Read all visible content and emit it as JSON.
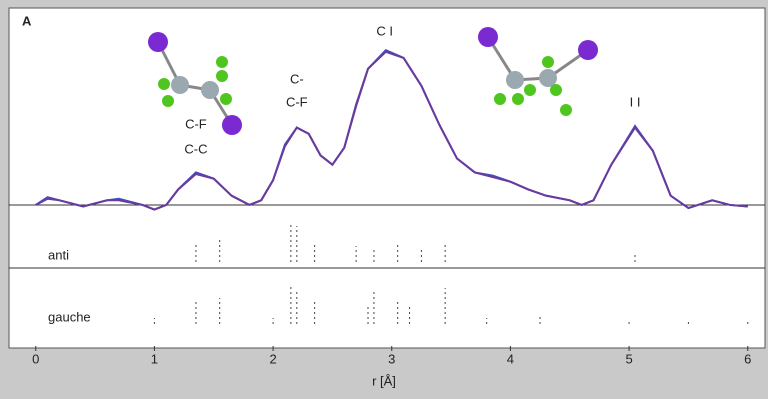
{
  "chart_data": {
    "type": "line",
    "panel_label": "A",
    "xlabel": "r [Å]",
    "x": [
      0.0,
      0.1,
      0.2,
      0.4,
      0.6,
      0.7,
      0.9,
      1.0,
      1.1,
      1.2,
      1.35,
      1.5,
      1.65,
      1.8,
      1.9,
      2.0,
      2.1,
      2.2,
      2.3,
      2.4,
      2.5,
      2.6,
      2.7,
      2.8,
      2.95,
      3.1,
      3.25,
      3.4,
      3.55,
      3.7,
      3.85,
      4.0,
      4.15,
      4.3,
      4.5,
      4.6,
      4.7,
      4.85,
      5.05,
      5.2,
      5.35,
      5.5,
      5.7,
      5.85,
      6.0
    ],
    "series": [
      {
        "color": "#3b4fc4",
        "values": [
          0,
          0.05,
          0.03,
          -0.01,
          0.03,
          0.04,
          0,
          -0.03,
          0,
          0.1,
          0.21,
          0.17,
          0.06,
          0,
          0.03,
          0.16,
          0.39,
          0.5,
          0.46,
          0.32,
          0.26,
          0.37,
          0.65,
          0.88,
          1.0,
          0.95,
          0.77,
          0.52,
          0.3,
          0.21,
          0.19,
          0.15,
          0.1,
          0.06,
          0.03,
          0,
          0.03,
          0.26,
          0.51,
          0.35,
          0.06,
          -0.02,
          0.03,
          0,
          -0.01
        ]
      },
      {
        "color": "#6a3a9c",
        "values": [
          0,
          0.04,
          0.03,
          -0.01,
          0.03,
          0.03,
          0,
          -0.03,
          0,
          0.1,
          0.2,
          0.17,
          0.06,
          0,
          0.03,
          0.16,
          0.38,
          0.5,
          0.46,
          0.32,
          0.26,
          0.37,
          0.64,
          0.88,
          0.99,
          0.95,
          0.77,
          0.52,
          0.3,
          0.21,
          0.18,
          0.15,
          0.1,
          0.06,
          0.03,
          0,
          0.03,
          0.26,
          0.5,
          0.35,
          0.06,
          -0.02,
          0.03,
          0,
          -0.01
        ]
      }
    ],
    "xlim": [
      -0.2,
      6.12
    ],
    "xticks": [
      0,
      1,
      2,
      3,
      4,
      5,
      6
    ],
    "ylim": [
      -0.065,
      1.26
    ],
    "annotations": [
      {
        "text": "C-F",
        "x": 1.35,
        "y": 0.517
      },
      {
        "text": "C-C",
        "x": 1.35,
        "y": 0.355
      },
      {
        "text": "C-",
        "x": 2.2,
        "y": 0.808
      },
      {
        "text": "C-F",
        "x": 2.2,
        "y": 0.659
      },
      {
        "text": "C I",
        "x": 2.94,
        "y": 1.118
      },
      {
        "text": "I I",
        "x": 5.05,
        "y": 0.659
      }
    ],
    "sticks": [
      {
        "label": "anti",
        "x": [
          1.35,
          1.55,
          2.15,
          2.2,
          2.35,
          2.7,
          2.85,
          3.05,
          3.25,
          3.45,
          5.05
        ],
        "heights": [
          0.5,
          0.6,
          1.0,
          0.9,
          0.5,
          0.4,
          0.35,
          0.5,
          0.35,
          0.5,
          0.2
        ]
      },
      {
        "label": "gauche",
        "x": [
          1.0,
          1.35,
          1.55,
          2.0,
          2.15,
          2.2,
          2.35,
          2.8,
          2.85,
          3.05,
          3.15,
          3.45,
          3.8,
          4.25,
          5.0,
          5.5,
          6.0
        ],
        "heights": [
          0.15,
          0.6,
          0.65,
          0.15,
          1.0,
          0.8,
          0.6,
          0.5,
          0.8,
          0.55,
          0.45,
          0.9,
          0.15,
          0.2,
          0.1,
          0.1,
          0.1
        ]
      }
    ]
  }
}
